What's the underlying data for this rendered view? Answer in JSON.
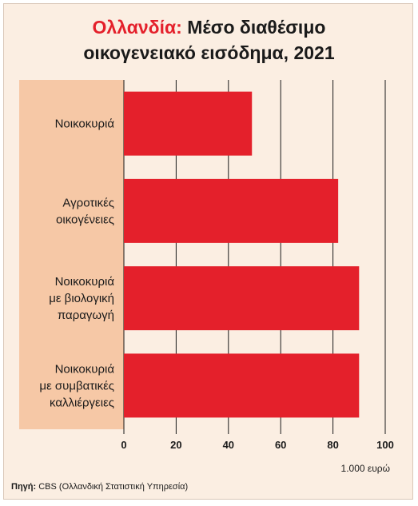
{
  "title": {
    "highlight": "Ολλανδία:",
    "line1": " Μέσο διαθέσιμο",
    "line2": "οικογενειακό εισόδημα, 2021"
  },
  "source": {
    "label": "Πηγή:",
    "text": " CBS (Ολλανδική Στατιστική Υπηρεσία)"
  },
  "colors": {
    "bar": "#e4202b",
    "label_panel": "#f6c8a6",
    "grid": "#1a1a1a"
  },
  "chart_data": {
    "type": "bar",
    "orientation": "horizontal",
    "categories": [
      [
        "Νοικοκυριά"
      ],
      [
        "Αγροτικές",
        "οικογένειες"
      ],
      [
        "Νοικοκυριά",
        "με βιολογική",
        "παραγωγή"
      ],
      [
        "Νοικοκυριά",
        "με συμβατικές",
        "καλλιέργειες"
      ]
    ],
    "values": [
      49,
      82,
      90,
      90
    ],
    "xlim": [
      0,
      100
    ],
    "xticks": [
      0,
      20,
      40,
      60,
      80,
      100
    ],
    "xlabel": "1.000 ευρώ",
    "grid": true
  }
}
